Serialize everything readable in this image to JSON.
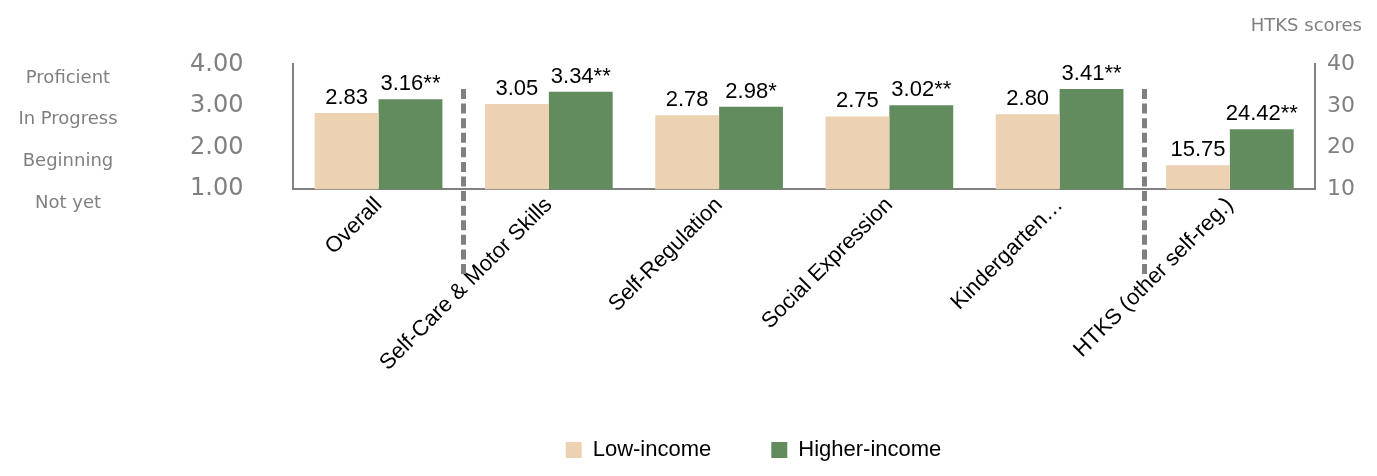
{
  "chart_data": {
    "type": "bar",
    "categories": [
      "Overall",
      "Self-Care & Motor Skills",
      "Self-Regulation",
      "Social Expression",
      "Kindergarten…",
      "HTKS (other self-reg.)"
    ],
    "series": [
      {
        "name": "Low-income",
        "color": "#ecd2b2",
        "values": [
          2.83,
          3.05,
          2.78,
          2.75,
          2.8,
          null
        ],
        "value_labels": [
          "2.83",
          "3.05",
          "2.78",
          "2.75",
          "2.80",
          null
        ]
      },
      {
        "name": "Higher-income",
        "color": "#628c5e",
        "values": [
          3.16,
          3.34,
          2.98,
          3.02,
          3.41,
          null
        ],
        "value_labels": [
          "3.16**",
          "3.34**",
          "2.98*",
          "3.02**",
          "3.41**",
          null
        ]
      },
      {
        "color": "#ecd2b2",
        "axis": "y2",
        "values": [
          null,
          null,
          null,
          null,
          null,
          15.75
        ],
        "value_labels": [
          null,
          null,
          null,
          null,
          null,
          "15.75"
        ]
      },
      {
        "color": "#628c5e",
        "axis": "y2",
        "values": [
          null,
          null,
          null,
          null,
          null,
          24.42
        ],
        "value_labels": [
          null,
          null,
          null,
          null,
          null,
          "24.42**"
        ]
      }
    ],
    "ylim": [
      1,
      4
    ],
    "yticks": [
      {
        "value": 1,
        "label": "1.00"
      },
      {
        "value": 2,
        "label": "2.00"
      },
      {
        "value": 3,
        "label": "3.00"
      },
      {
        "value": 4,
        "label": "4.00"
      }
    ],
    "y2lim": [
      10,
      40
    ],
    "y2ticks": [
      10,
      20,
      30,
      40
    ],
    "y2label": "HTKS scores",
    "annotations": [
      "Proficient",
      "In Progress",
      "Beginning",
      "Not yet"
    ],
    "grid": false,
    "legend": "bottom"
  }
}
